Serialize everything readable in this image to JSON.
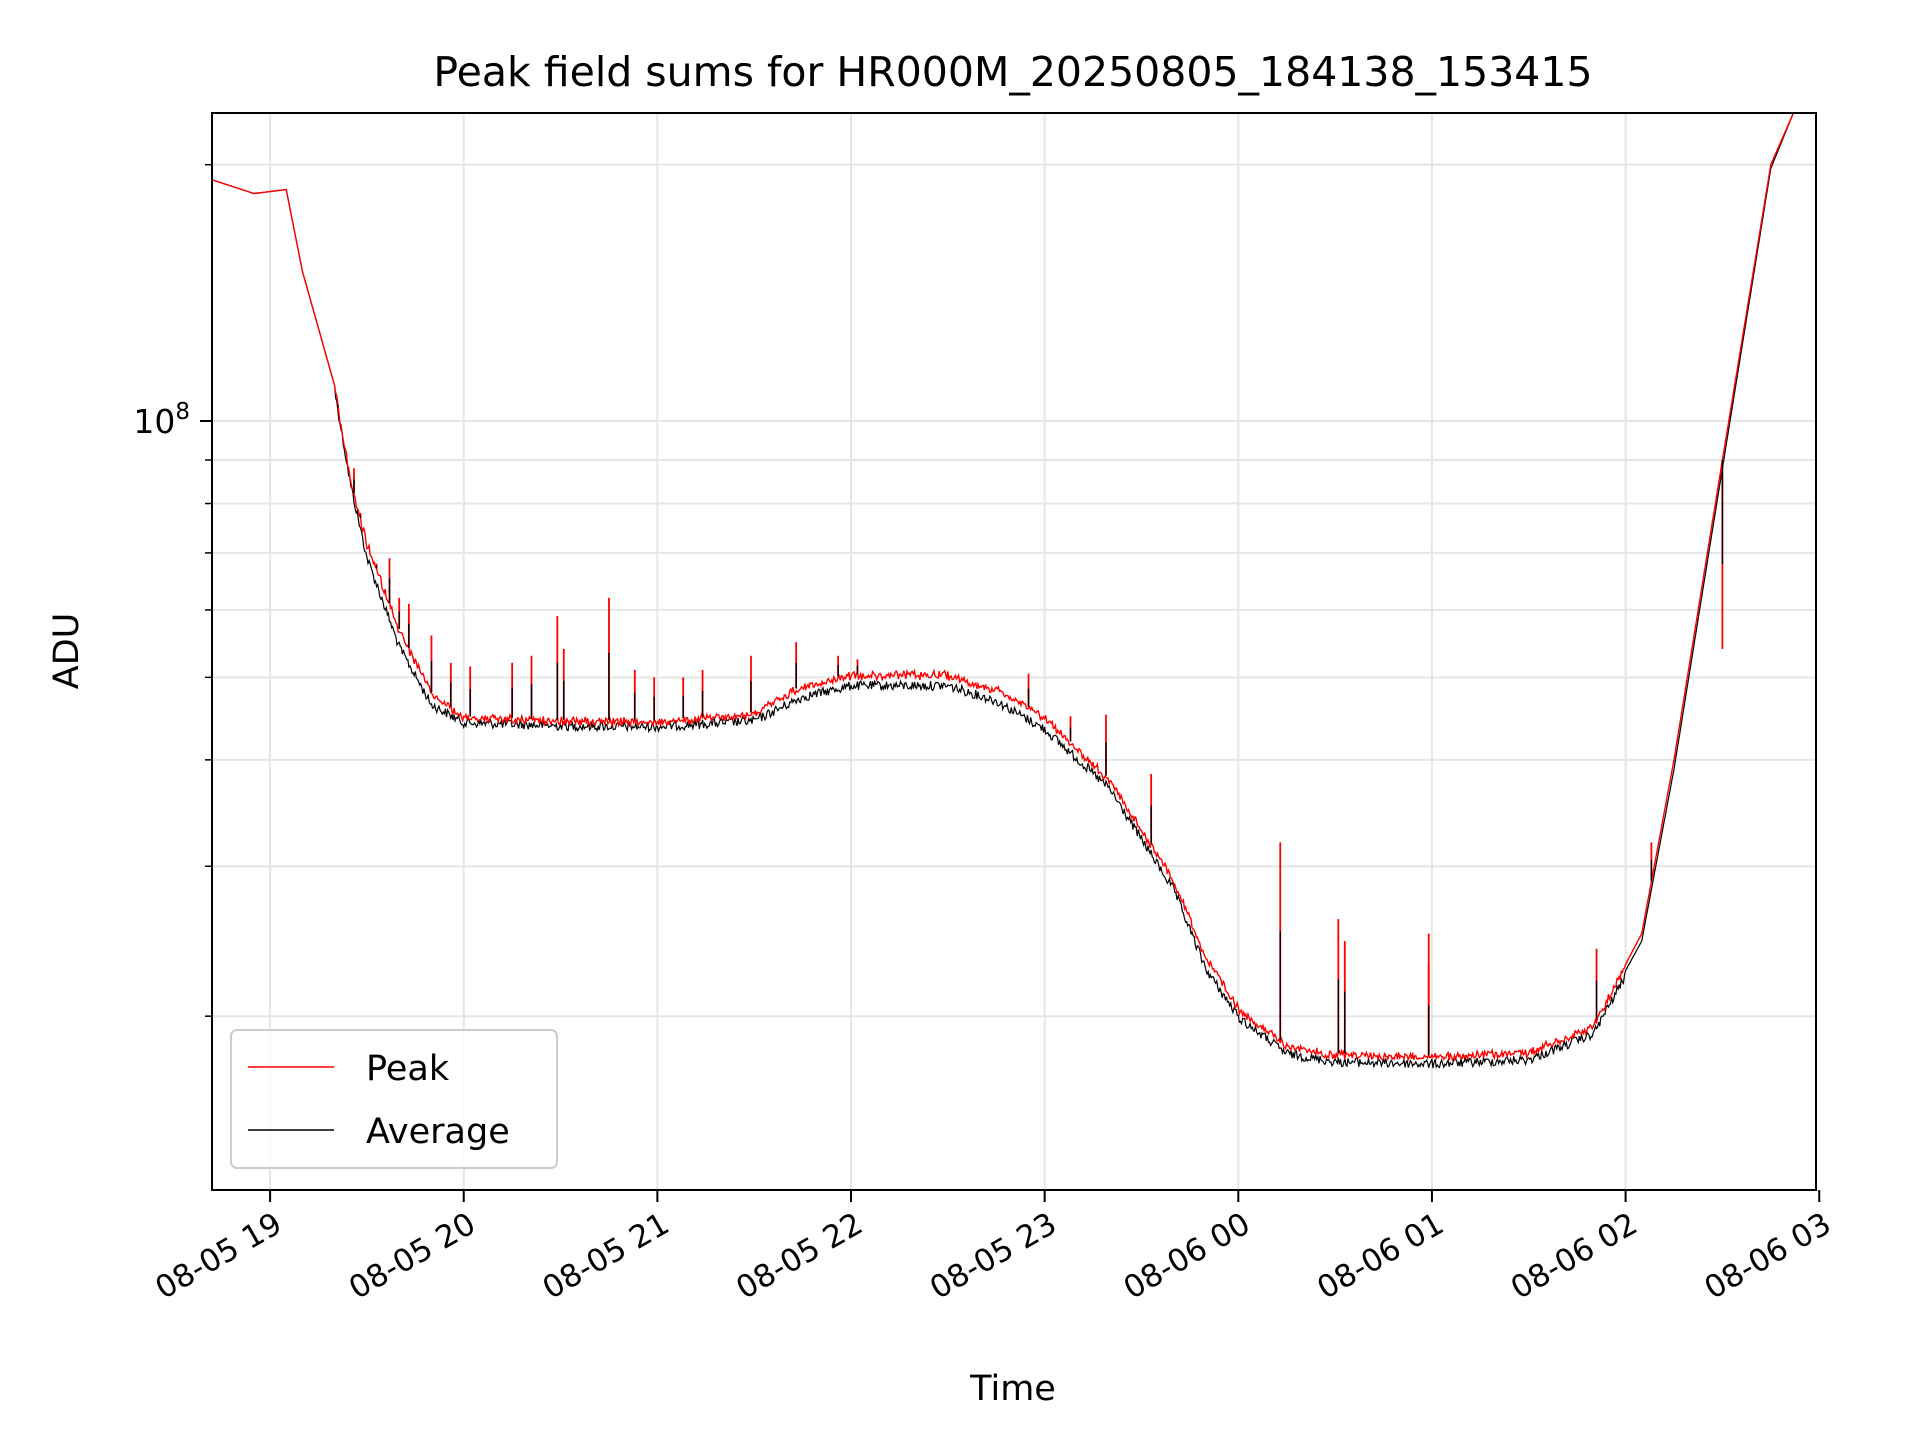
{
  "chart_data": {
    "type": "line",
    "title": "Peak field sums for HR000M_20250805_184138_153415",
    "xlabel": "Time",
    "ylabel": "ADU",
    "y_scale": "log",
    "y_tick_label_base": "10",
    "y_tick_label_exp": "8",
    "y_tick_value": 100000000,
    "ylim": [
      12500000,
      230000000
    ],
    "xlim": [
      "2025-08-05 18:42",
      "2025-08-06 02:59"
    ],
    "x_ticks": [
      "08-05 19",
      "08-05 20",
      "08-05 21",
      "08-05 22",
      "08-05 23",
      "08-06 00",
      "08-06 01",
      "08-06 02",
      "08-06 03"
    ],
    "grid": true,
    "legend_position": "lower-left",
    "colors": {
      "peak": "#ff0000",
      "average": "#000000"
    },
    "series": [
      {
        "name": "Peak",
        "color": "#ff0000",
        "points": [
          [
            "2025-08-05 18:42",
            192000000
          ],
          [
            "2025-08-05 18:55",
            185000000
          ],
          [
            "2025-08-05 19:05",
            187000000
          ],
          [
            "2025-08-05 19:10",
            150000000
          ],
          [
            "2025-08-05 19:20",
            110000000
          ],
          [
            "2025-08-05 19:25",
            85000000
          ],
          [
            "2025-08-05 19:30",
            72000000
          ],
          [
            "2025-08-05 19:40",
            57000000
          ],
          [
            "2025-08-05 19:50",
            48000000
          ],
          [
            "2025-08-05 20:00",
            45000000
          ],
          [
            "2025-08-05 20:30",
            44600000
          ],
          [
            "2025-08-05 21:00",
            44500000
          ],
          [
            "2025-08-05 21:30",
            45500000
          ],
          [
            "2025-08-05 21:45",
            49000000
          ],
          [
            "2025-08-05 22:00",
            50500000
          ],
          [
            "2025-08-05 22:30",
            50500000
          ],
          [
            "2025-08-05 22:45",
            48500000
          ],
          [
            "2025-08-05 23:00",
            45000000
          ],
          [
            "2025-08-05 23:20",
            38000000
          ],
          [
            "2025-08-05 23:40",
            29000000
          ],
          [
            "2025-08-05 23:50",
            23500000
          ],
          [
            "2025-08-06 00:00",
            20500000
          ],
          [
            "2025-08-06 00:15",
            18500000
          ],
          [
            "2025-08-06 00:30",
            18100000
          ],
          [
            "2025-08-06 01:00",
            18000000
          ],
          [
            "2025-08-06 01:30",
            18200000
          ],
          [
            "2025-08-06 01:50",
            19500000
          ],
          [
            "2025-08-06 02:05",
            25000000
          ],
          [
            "2025-08-06 02:15",
            40000000
          ],
          [
            "2025-08-06 02:30",
            90000000
          ],
          [
            "2025-08-06 02:45",
            200000000
          ],
          [
            "2025-08-06 02:52",
            230000000
          ]
        ]
      },
      {
        "name": "Average",
        "color": "#000000",
        "points": [
          [
            "2025-08-05 18:42",
            192000000
          ],
          [
            "2025-08-05 18:55",
            185000000
          ],
          [
            "2025-08-05 19:05",
            187000000
          ],
          [
            "2025-08-05 19:10",
            150000000
          ],
          [
            "2025-08-05 19:20",
            110000000
          ],
          [
            "2025-08-05 19:25",
            85000000
          ],
          [
            "2025-08-05 19:30",
            70000000
          ],
          [
            "2025-08-05 19:40",
            55000000
          ],
          [
            "2025-08-05 19:50",
            47000000
          ],
          [
            "2025-08-05 20:00",
            44800000
          ],
          [
            "2025-08-05 20:30",
            44400000
          ],
          [
            "2025-08-05 21:00",
            44300000
          ],
          [
            "2025-08-05 21:30",
            45000000
          ],
          [
            "2025-08-05 21:45",
            48000000
          ],
          [
            "2025-08-05 22:00",
            49500000
          ],
          [
            "2025-08-05 22:30",
            49500000
          ],
          [
            "2025-08-05 22:45",
            47500000
          ],
          [
            "2025-08-05 23:00",
            44000000
          ],
          [
            "2025-08-05 23:20",
            37500000
          ],
          [
            "2025-08-05 23:40",
            28500000
          ],
          [
            "2025-08-05 23:50",
            23000000
          ],
          [
            "2025-08-06 00:00",
            20200000
          ],
          [
            "2025-08-06 00:15",
            18300000
          ],
          [
            "2025-08-06 00:30",
            17900000
          ],
          [
            "2025-08-06 01:00",
            17800000
          ],
          [
            "2025-08-06 01:30",
            18000000
          ],
          [
            "2025-08-06 01:50",
            19300000
          ],
          [
            "2025-08-06 02:05",
            24500000
          ],
          [
            "2025-08-06 02:15",
            39000000
          ],
          [
            "2025-08-06 02:30",
            88000000
          ],
          [
            "2025-08-06 02:45",
            198000000
          ],
          [
            "2025-08-06 02:52",
            230000000
          ]
        ]
      }
    ],
    "peak_spikes": [
      [
        "2025-08-05 19:21",
        103000000
      ],
      [
        "2025-08-05 19:26",
        88000000
      ],
      [
        "2025-08-05 19:28",
        78000000
      ],
      [
        "2025-08-05 19:33",
        68000000
      ],
      [
        "2025-08-05 19:37",
        69000000
      ],
      [
        "2025-08-05 19:40",
        62000000
      ],
      [
        "2025-08-05 19:43",
        61000000
      ],
      [
        "2025-08-05 19:50",
        56000000
      ],
      [
        "2025-08-05 19:56",
        52000000
      ],
      [
        "2025-08-05 20:02",
        51500000
      ],
      [
        "2025-08-05 20:15",
        52000000
      ],
      [
        "2025-08-05 20:21",
        53000000
      ],
      [
        "2025-08-05 20:29",
        59000000
      ],
      [
        "2025-08-05 20:31",
        54000000
      ],
      [
        "2025-08-05 20:45",
        62000000
      ],
      [
        "2025-08-05 20:53",
        51000000
      ],
      [
        "2025-08-05 20:59",
        50000000
      ],
      [
        "2025-08-05 21:08",
        50000000
      ],
      [
        "2025-08-05 21:14",
        51000000
      ],
      [
        "2025-08-05 21:29",
        53000000
      ],
      [
        "2025-08-05 21:43",
        55000000
      ],
      [
        "2025-08-05 21:56",
        53000000
      ],
      [
        "2025-08-05 22:02",
        52500000
      ],
      [
        "2025-08-05 22:33",
        50000000
      ],
      [
        "2025-08-05 22:55",
        50500000
      ],
      [
        "2025-08-05 23:08",
        45000000
      ],
      [
        "2025-08-05 23:19",
        45200000
      ],
      [
        "2025-08-05 23:33",
        38500000
      ],
      [
        "2025-08-06 00:13",
        32000000
      ],
      [
        "2025-08-06 00:31",
        26000000
      ],
      [
        "2025-08-06 00:33",
        24500000
      ],
      [
        "2025-08-06 00:59",
        25000000
      ],
      [
        "2025-08-06 00:59",
        23000000
      ],
      [
        "2025-08-06 01:51",
        24000000
      ],
      [
        "2025-08-06 02:08",
        32000000
      ],
      [
        "2025-08-06 02:30",
        54000000
      ]
    ]
  }
}
